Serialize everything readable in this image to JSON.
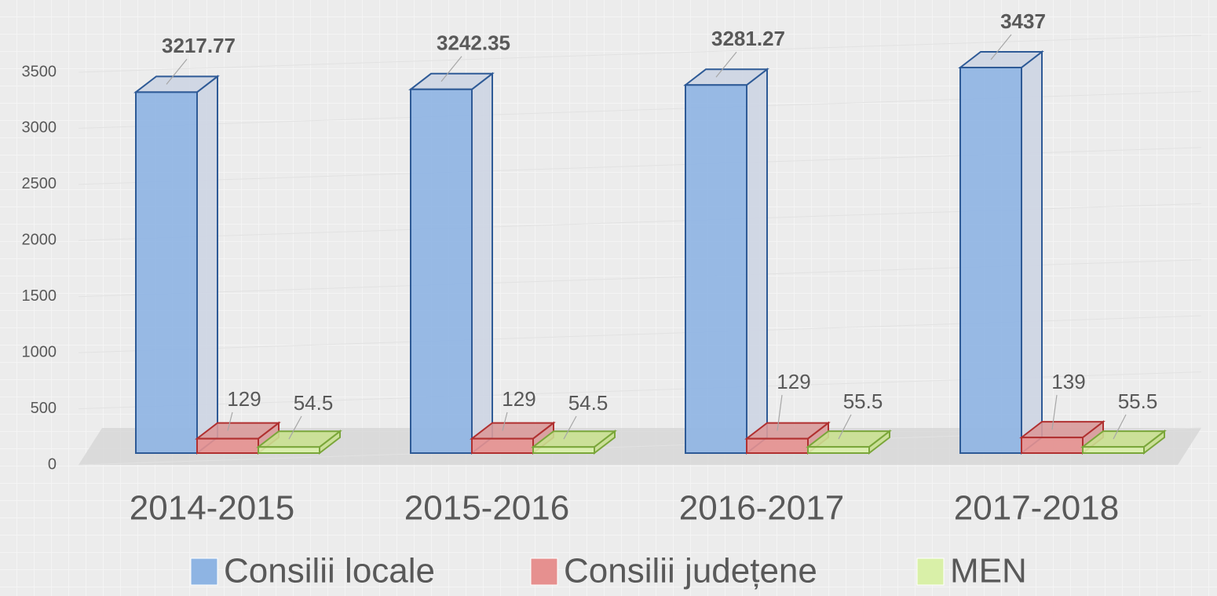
{
  "chart_data": {
    "type": "bar3d",
    "categories": [
      "2014-2015",
      "2015-2016",
      "2016-2017",
      "2017-2018"
    ],
    "series": [
      {
        "name": "Consilii locale",
        "color": "#8eb4e3",
        "values": [
          3217.77,
          3242.35,
          3281.27,
          3437
        ]
      },
      {
        "name": "Consilii județene",
        "color": "#e6908f",
        "values": [
          129,
          129,
          129,
          139
        ]
      },
      {
        "name": "MEN",
        "color": "#d9f0a8",
        "values": [
          54.5,
          54.5,
          55.5,
          55.5
        ]
      }
    ],
    "ylim": [
      0,
      3500
    ],
    "yticks": [
      0,
      500,
      1000,
      1500,
      2000,
      2500,
      3000,
      3500
    ],
    "grid": true,
    "legend": "bottom"
  }
}
